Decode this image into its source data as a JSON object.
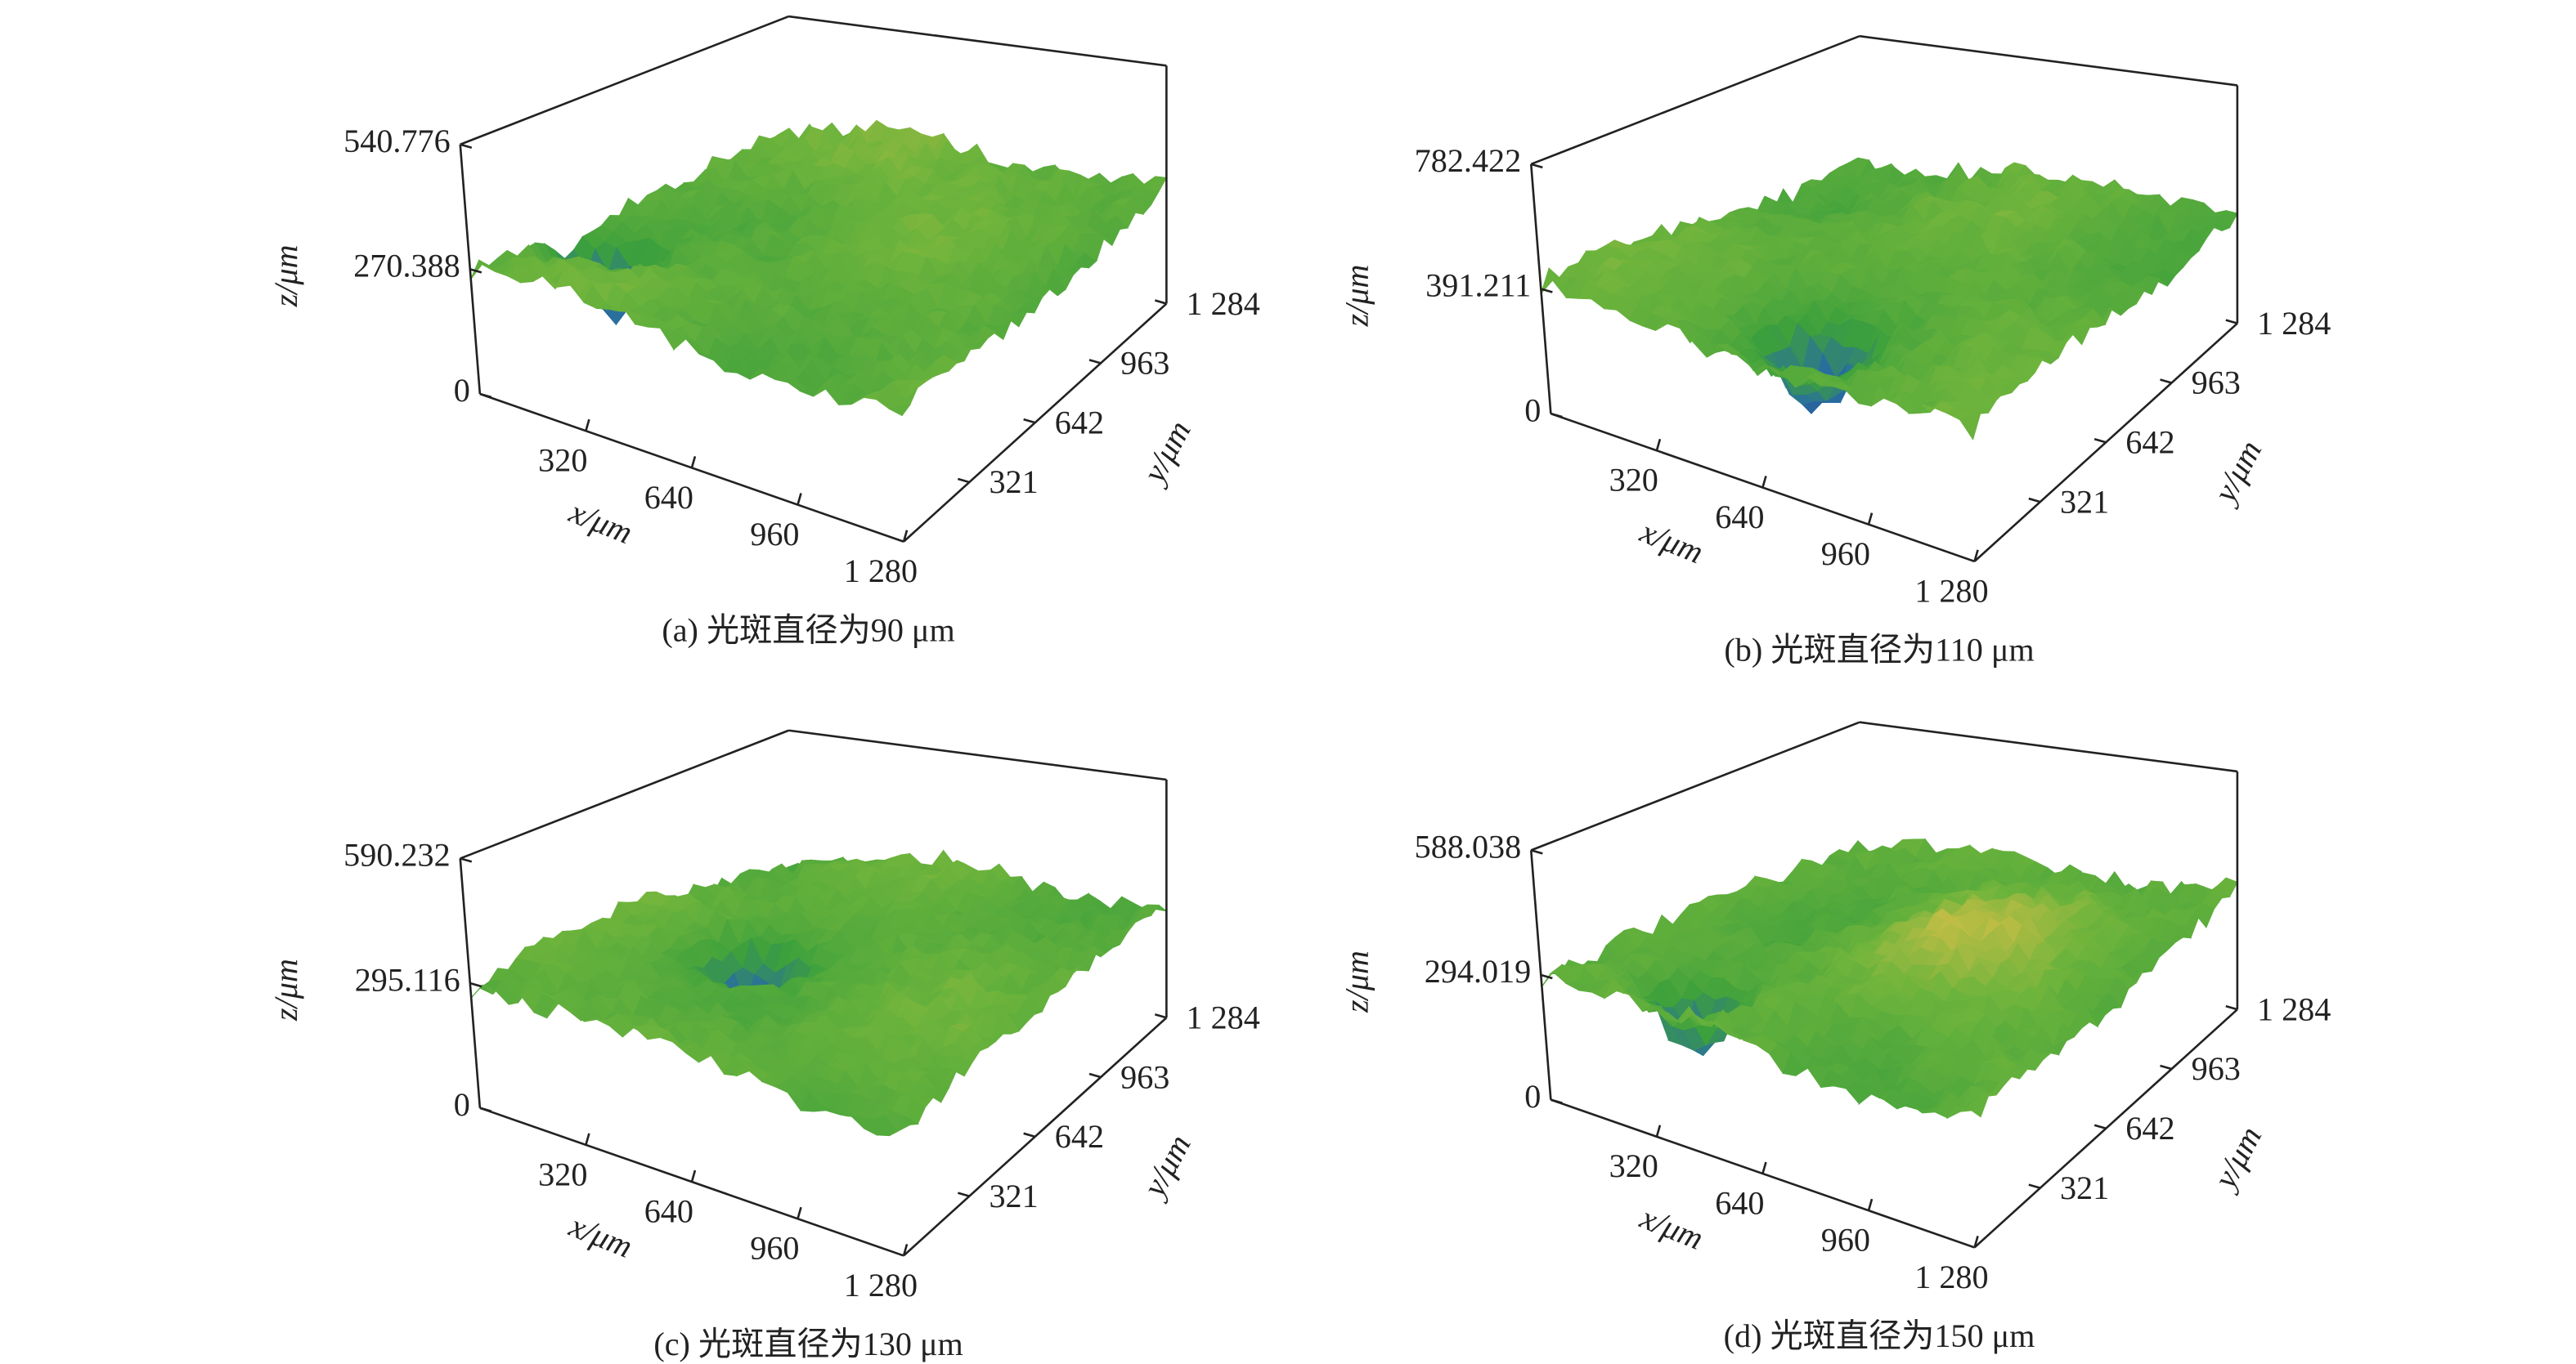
{
  "chart_data": [
    {
      "type": "surface",
      "caption": "(a) 光斑直径为90 μm",
      "xlabel": "x/μm",
      "ylabel": "y/μm",
      "zlabel": "z/μm",
      "xlim": [
        0,
        1280
      ],
      "xticks": [
        320,
        640,
        960,
        {
          "value": 1280,
          "label": "1 280"
        }
      ],
      "ylim": [
        0,
        1284
      ],
      "yticks": [
        321,
        642,
        963,
        {
          "value": 1284,
          "label": "1 284"
        }
      ],
      "zlim": [
        0,
        540.776
      ],
      "zticks": [
        0,
        270.388,
        540.776
      ]
    },
    {
      "type": "surface",
      "caption": "(b) 光斑直径为110 μm",
      "xlabel": "x/μm",
      "ylabel": "y/μm",
      "zlabel": "z/μm",
      "xlim": [
        0,
        1280
      ],
      "xticks": [
        320,
        640,
        960,
        {
          "value": 1280,
          "label": "1 280"
        }
      ],
      "ylim": [
        0,
        1284
      ],
      "yticks": [
        321,
        642,
        963,
        {
          "value": 1284,
          "label": "1 284"
        }
      ],
      "zlim": [
        0,
        782.422
      ],
      "zticks": [
        0,
        391.211,
        782.422
      ]
    },
    {
      "type": "surface",
      "caption": "(c) 光斑直径为130 μm",
      "xlabel": "x/μm",
      "ylabel": "y/μm",
      "zlabel": "z/μm",
      "xlim": [
        0,
        1280
      ],
      "xticks": [
        320,
        640,
        960,
        {
          "value": 1280,
          "label": "1 280"
        }
      ],
      "ylim": [
        0,
        1284
      ],
      "yticks": [
        321,
        642,
        963,
        {
          "value": 1284,
          "label": "1 284"
        }
      ],
      "zlim": [
        0,
        590.232
      ],
      "zticks": [
        0,
        295.116,
        590.232
      ]
    },
    {
      "type": "surface",
      "caption": "(d) 光斑直径为150 μm",
      "xlabel": "x/μm",
      "ylabel": "y/μm",
      "zlabel": "z/μm",
      "xlim": [
        0,
        1280
      ],
      "xticks": [
        320,
        640,
        960,
        {
          "value": 1280,
          "label": "1 280"
        }
      ],
      "ylim": [
        0,
        1284
      ],
      "yticks": [
        321,
        642,
        963,
        {
          "value": 1284,
          "label": "1 284"
        }
      ],
      "zlim": [
        0,
        588.038
      ],
      "zticks": [
        0,
        294.019,
        588.038
      ]
    }
  ]
}
